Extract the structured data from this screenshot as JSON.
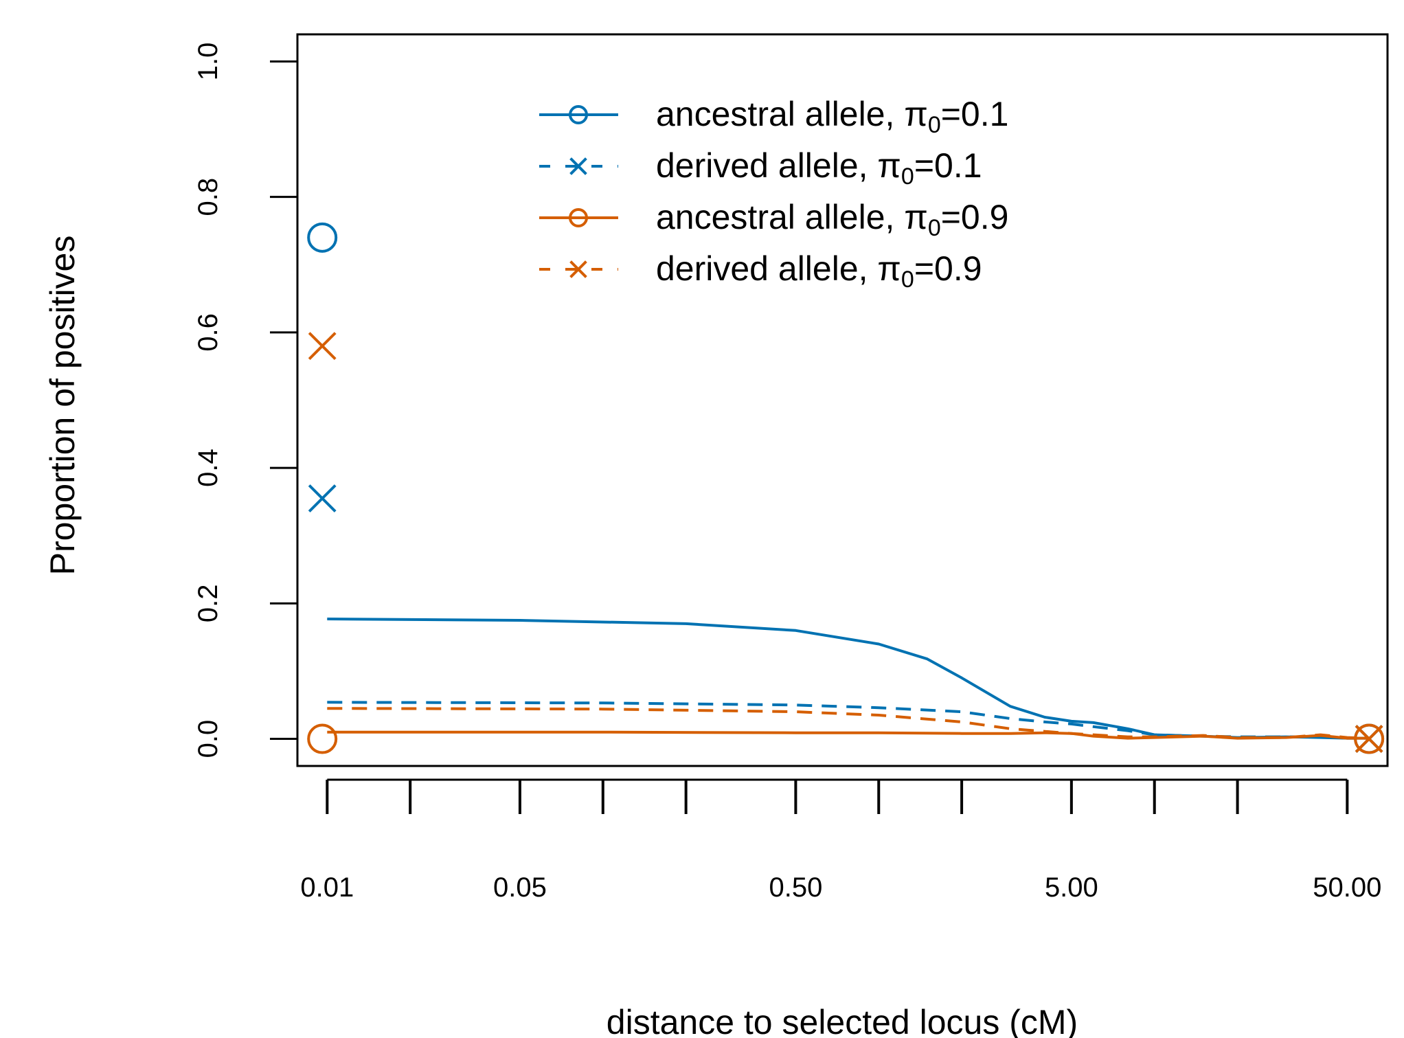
{
  "chart_data": {
    "type": "line",
    "title": "",
    "xlabel": "distance to selected locus (cM)",
    "ylabel": "Proportion of positives",
    "x_scale": "log",
    "xlim": [
      0.0078,
      70
    ],
    "ylim": [
      -0.04,
      1.04
    ],
    "x_ticks": [
      0.01,
      0.02,
      0.05,
      0.1,
      0.2,
      0.5,
      1,
      2,
      5,
      10,
      20,
      50
    ],
    "x_tick_labels": [
      {
        "value": 0.01,
        "label": "0.01"
      },
      {
        "value": 0.05,
        "label": "0.05"
      },
      {
        "value": 0.5,
        "label": "0.50"
      },
      {
        "value": 5,
        "label": "5.00"
      },
      {
        "value": 50,
        "label": "50.00"
      }
    ],
    "y_ticks": [
      {
        "value": 0.0,
        "label": "0.0"
      },
      {
        "value": 0.2,
        "label": "0.2"
      },
      {
        "value": 0.4,
        "label": "0.4"
      },
      {
        "value": 0.6,
        "label": "0.6"
      },
      {
        "value": 0.8,
        "label": "0.8"
      },
      {
        "value": 1.0,
        "label": "1.0"
      }
    ],
    "grid": false,
    "legend_position": "top-center",
    "colors": {
      "blue": "#0072B2",
      "orange": "#D55E00"
    },
    "series": [
      {
        "legend_text": "ancestral allele, ",
        "legend_pi_value": "=0.1",
        "color": "#0072B2",
        "dash": false,
        "marker": "circle",
        "x": [
          0.01,
          0.05,
          0.2,
          0.5,
          1,
          1.5,
          2,
          3,
          4,
          5,
          6,
          8,
          10,
          15,
          20,
          30,
          40,
          50,
          60
        ],
        "y": [
          0.177,
          0.175,
          0.17,
          0.16,
          0.14,
          0.118,
          0.09,
          0.048,
          0.032,
          0.026,
          0.024,
          0.015,
          0.006,
          0.004,
          0.002,
          0.003,
          0.002,
          0.001,
          0.001
        ],
        "end_points": [
          {
            "x": 0.0096,
            "y": 0.74
          },
          {
            "x": 60,
            "y": 0.0
          }
        ]
      },
      {
        "legend_text": "derived allele, ",
        "legend_pi_value": "=0.1",
        "color": "#0072B2",
        "dash": true,
        "marker": "x",
        "x": [
          0.01,
          0.1,
          0.5,
          1,
          2,
          3,
          4,
          5,
          6,
          8,
          10,
          15,
          20,
          30,
          40,
          50,
          60
        ],
        "y": [
          0.054,
          0.053,
          0.05,
          0.046,
          0.04,
          0.03,
          0.025,
          0.022,
          0.018,
          0.012,
          0.006,
          0.004,
          0.003,
          0.003,
          0.003,
          0.001,
          0.001
        ],
        "end_points": [
          {
            "x": 0.0096,
            "y": 0.355
          },
          {
            "x": 60,
            "y": 0.0
          }
        ]
      },
      {
        "legend_text": "ancestral allele, ",
        "legend_pi_value": "=0.9",
        "color": "#D55E00",
        "dash": false,
        "marker": "circle",
        "x": [
          0.01,
          0.1,
          0.5,
          1,
          2,
          3,
          4,
          5,
          6,
          8,
          10,
          15,
          20,
          30,
          40,
          50,
          60
        ],
        "y": [
          0.01,
          0.01,
          0.009,
          0.009,
          0.008,
          0.008,
          0.009,
          0.008,
          0.004,
          0.001,
          0.002,
          0.004,
          0.001,
          0.002,
          0.005,
          0.001,
          0.001
        ],
        "end_points": [
          {
            "x": 0.0096,
            "y": 0.0
          },
          {
            "x": 60,
            "y": 0.0
          }
        ]
      },
      {
        "legend_text": "derived allele, ",
        "legend_pi_value": "=0.9",
        "color": "#D55E00",
        "dash": true,
        "marker": "x",
        "x": [
          0.01,
          0.1,
          0.5,
          1,
          2,
          3,
          4,
          5,
          6,
          8,
          10,
          15,
          20,
          30,
          40,
          50,
          60
        ],
        "y": [
          0.045,
          0.044,
          0.04,
          0.035,
          0.025,
          0.015,
          0.011,
          0.008,
          0.006,
          0.003,
          0.003,
          0.005,
          0.002,
          0.002,
          0.006,
          0.002,
          0.001
        ],
        "end_points": [
          {
            "x": 0.0096,
            "y": 0.58
          },
          {
            "x": 60,
            "y": 0.0
          }
        ]
      }
    ]
  }
}
